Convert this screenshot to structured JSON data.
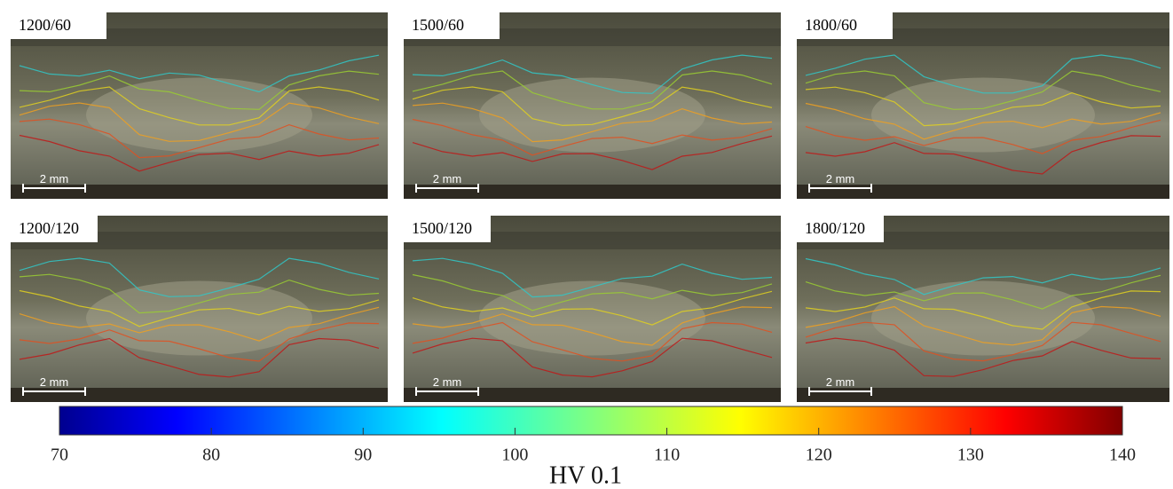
{
  "panels": [
    {
      "label": "1200/60",
      "scale_bar": "2 mm"
    },
    {
      "label": "1500/60",
      "scale_bar": "2 mm"
    },
    {
      "label": "1800/60",
      "scale_bar": "2 mm"
    },
    {
      "label": "1200/120",
      "scale_bar": "2 mm"
    },
    {
      "label": "1500/120",
      "scale_bar": "2 mm"
    },
    {
      "label": "1800/120",
      "scale_bar": "2 mm"
    }
  ],
  "colorbar": {
    "label": "HV 0.1",
    "lim": [
      70,
      140
    ],
    "ticks": [
      70,
      80,
      90,
      100,
      110,
      120,
      130,
      140
    ]
  }
}
